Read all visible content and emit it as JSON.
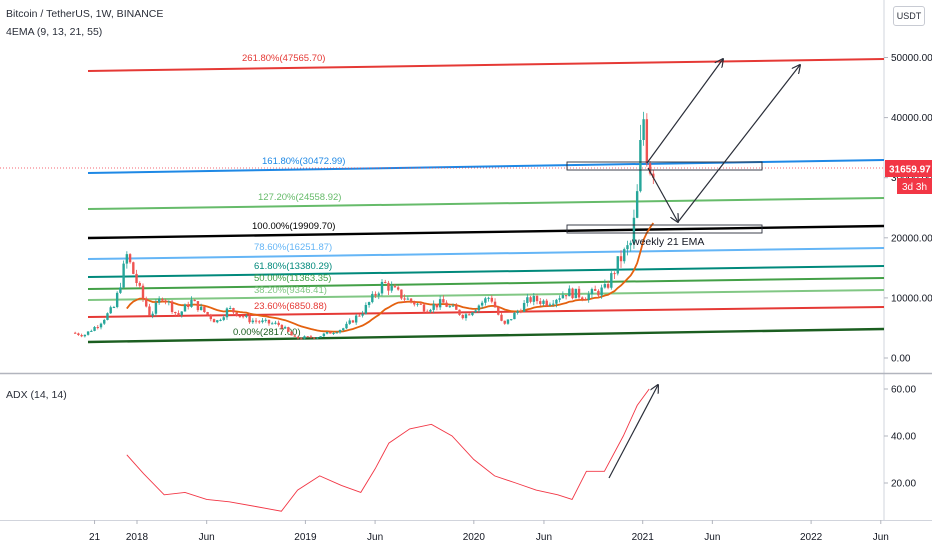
{
  "header": {
    "symbol_line": "Bitcoin / TetherUS, 1W, BINANCE",
    "indicator_line": "4EMA (9, 13, 21, 55)",
    "currency_button": "USDT"
  },
  "adx_pane": {
    "title": "ADX (14, 14)"
  },
  "colors": {
    "up": "#26a69a",
    "down": "#ef5350",
    "ema": "#e4610f",
    "adx": "#f23645",
    "price_tag": "#f23645",
    "arrow": "#2a2e39"
  },
  "current_price": {
    "value": "31659.97",
    "countdown": "3d 3h"
  },
  "annotation": {
    "text": "weekly 21 EMA"
  },
  "fib_levels": [
    {
      "label": "261.80%(47565.70)",
      "color": "#e53935",
      "width": 2
    },
    {
      "label": "161.80%(30472.99)",
      "color": "#1e88e5",
      "width": 2
    },
    {
      "label": "127.20%(24558.92)",
      "color": "#66bb6a",
      "width": 2
    },
    {
      "label": "100.00%(19909.70)",
      "color": "#000000",
      "width": 2.4
    },
    {
      "label": "78.60%(16251.87)",
      "color": "#64b5f6",
      "width": 2
    },
    {
      "label": "61.80%(13380.29)",
      "color": "#00897b",
      "width": 2
    },
    {
      "label": "50.00%(11363.35)",
      "color": "#43a047",
      "width": 2
    },
    {
      "label": "38.20%(9346.41)",
      "color": "#81c784",
      "width": 2
    },
    {
      "label": "23.60%(6850.88)",
      "color": "#e53935",
      "width": 2
    },
    {
      "label": "0.00%(2817.00)",
      "color": "#1b5e20",
      "width": 2.4
    }
  ],
  "chart_data": [
    {
      "type": "candlestick",
      "title": "Bitcoin / TetherUS, 1W, BINANCE",
      "x_ticks": [
        "21",
        "2018",
        "Jun",
        "2019",
        "Jun",
        "2020",
        "Jun",
        "2021",
        "Jun",
        "2022",
        "Jun"
      ],
      "y_ticks": [
        "50000.00",
        "40000.00",
        "30000.00",
        "20000.00",
        "10000.00",
        "0.00"
      ],
      "ylim": [
        0,
        50000
      ],
      "price_path": {
        "dates": [
          "2017-08-20",
          "2017-09-15",
          "2017-10-15",
          "2017-11-20",
          "2017-12-17",
          "2018-01-15",
          "2018-02-06",
          "2018-03-05",
          "2018-04-06",
          "2018-05-05",
          "2018-06-29",
          "2018-07-25",
          "2018-09-10",
          "2018-11-15",
          "2018-12-15",
          "2019-02-01",
          "2019-04-02",
          "2019-05-15",
          "2019-06-26",
          "2019-08-10",
          "2019-09-25",
          "2019-11-01",
          "2019-12-18",
          "2020-02-13",
          "2020-03-12",
          "2020-03-20",
          "2020-05-08",
          "2020-06-15",
          "2020-07-28",
          "2020-09-05",
          "2020-10-20",
          "2020-11-15",
          "2020-12-15",
          "2020-12-30",
          "2021-01-08",
          "2021-01-15",
          "2021-01-25"
        ],
        "prices": [
          4200,
          3800,
          5500,
          8500,
          17000,
          11000,
          7000,
          10500,
          7000,
          9500,
          6000,
          8200,
          6300,
          5500,
          3300,
          3500,
          5000,
          8000,
          12500,
          10000,
          8300,
          9200,
          7000,
          10300,
          5200,
          6000,
          9800,
          9300,
          11000,
          10300,
          11500,
          15800,
          19200,
          28900,
          41900,
          35000,
          31659.97
        ]
      },
      "current_price": 31659.97
    },
    {
      "type": "line",
      "title": "ADX (14, 14)",
      "y_ticks": [
        "60.00",
        "40.00",
        "20.00"
      ],
      "ylim": [
        0,
        70
      ],
      "series": [
        {
          "x": [
            "2017-12-10",
            "2018-01-15",
            "2018-03-01",
            "2018-04-15",
            "2018-06-01",
            "2018-07-20",
            "2018-09-15",
            "2018-11-10",
            "2018-12-15",
            "2019-02-01",
            "2019-03-20",
            "2019-05-01",
            "2019-06-01",
            "2019-07-01",
            "2019-08-15",
            "2019-10-01",
            "2019-11-15",
            "2020-01-01",
            "2020-02-15",
            "2020-04-01",
            "2020-05-15",
            "2020-07-01",
            "2020-08-01",
            "2020-09-01",
            "2020-10-10",
            "2020-11-20",
            "2020-12-20",
            "2021-01-15"
          ],
          "values": [
            32,
            24,
            15,
            16,
            13,
            12,
            10,
            8,
            17,
            23,
            19,
            16,
            26,
            37,
            43,
            45,
            40,
            30,
            23,
            20,
            17,
            15,
            13,
            25,
            25,
            40,
            53,
            60
          ]
        }
      ]
    }
  ]
}
